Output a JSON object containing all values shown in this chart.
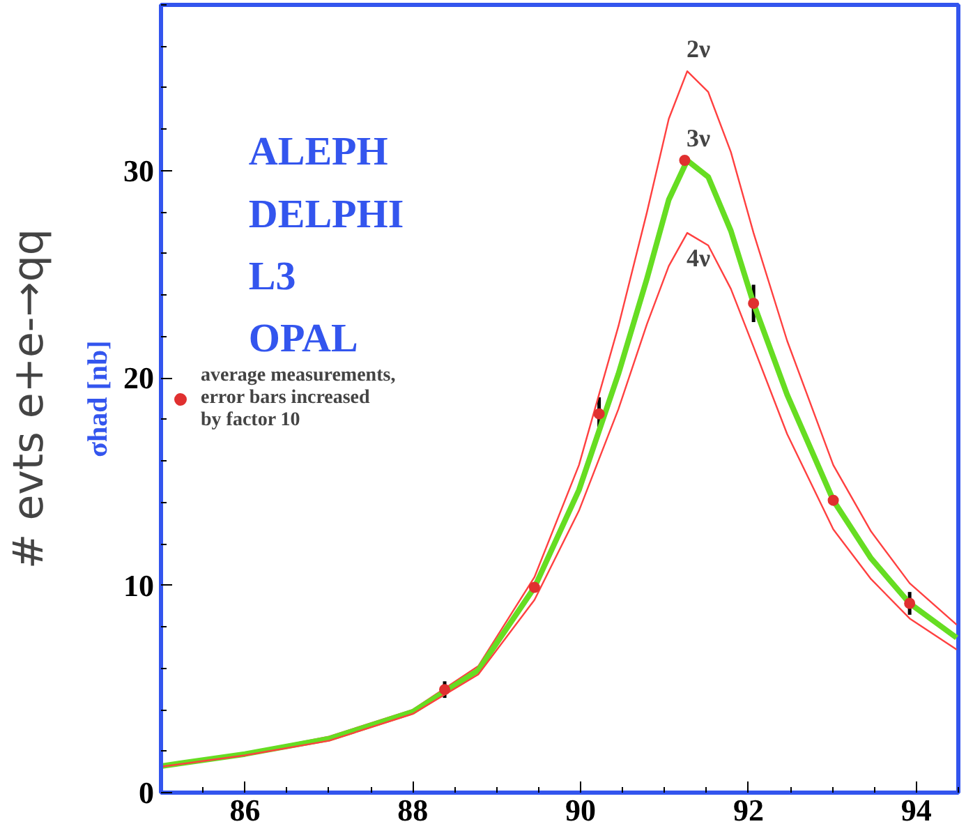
{
  "chart_data": {
    "type": "line",
    "ylabel": "σhad [nb]",
    "xlim": [
      85,
      94.5
    ],
    "ylim": [
      0,
      38
    ],
    "xticks": [
      86,
      88,
      90,
      92,
      94
    ],
    "yticks": [
      0,
      10,
      20,
      30
    ],
    "grid": false,
    "legend": "left",
    "marker": "none",
    "line_style": "solid",
    "x": [
      85,
      86,
      87,
      88,
      88.78,
      89.45,
      89.98,
      90.45,
      90.79,
      91.05,
      91.27,
      91.52,
      91.79,
      92.06,
      92.46,
      93.01,
      93.46,
      93.92,
      94.48
    ],
    "series": [
      {
        "name": "2ν",
        "color": "#ff4040",
        "values": [
          1.3,
          1.9,
          2.7,
          4.0,
          6.1,
          10.4,
          15.8,
          22.5,
          28.0,
          32.5,
          34.8,
          33.8,
          30.9,
          27.0,
          21.8,
          15.8,
          12.6,
          10.1,
          8.1
        ]
      },
      {
        "name": "3ν",
        "color": "#66dd22",
        "values": [
          1.28,
          1.86,
          2.6,
          3.9,
          5.9,
          9.9,
          14.6,
          20.2,
          24.8,
          28.6,
          30.5,
          29.7,
          27.1,
          23.6,
          19.2,
          14.1,
          11.3,
          9.13,
          7.47
        ]
      },
      {
        "name": "4ν",
        "color": "#ff4040",
        "values": [
          1.25,
          1.8,
          2.5,
          3.8,
          5.7,
          9.3,
          13.6,
          18.5,
          22.6,
          25.4,
          27.0,
          26.4,
          24.3,
          21.5,
          17.3,
          12.7,
          10.3,
          8.4,
          6.9
        ]
      },
      {
        "type": "scatter",
        "marker": "circle",
        "name": "average measurements, error bars increased by factor 10",
        "color": "#e03030",
        "x": [
          88.38,
          89.45,
          90.22,
          91.24,
          92.06,
          93.01,
          93.92
        ],
        "values": [
          4.97,
          9.9,
          18.27,
          30.5,
          23.6,
          14.1,
          9.13
        ],
        "errors": [
          0.4,
          null,
          0.8,
          null,
          0.9,
          null,
          0.55
        ]
      }
    ],
    "annotations": [
      "ALEPH",
      "DELPHI",
      "L3",
      "OPAL",
      "# evts e+e-→qq"
    ]
  }
}
